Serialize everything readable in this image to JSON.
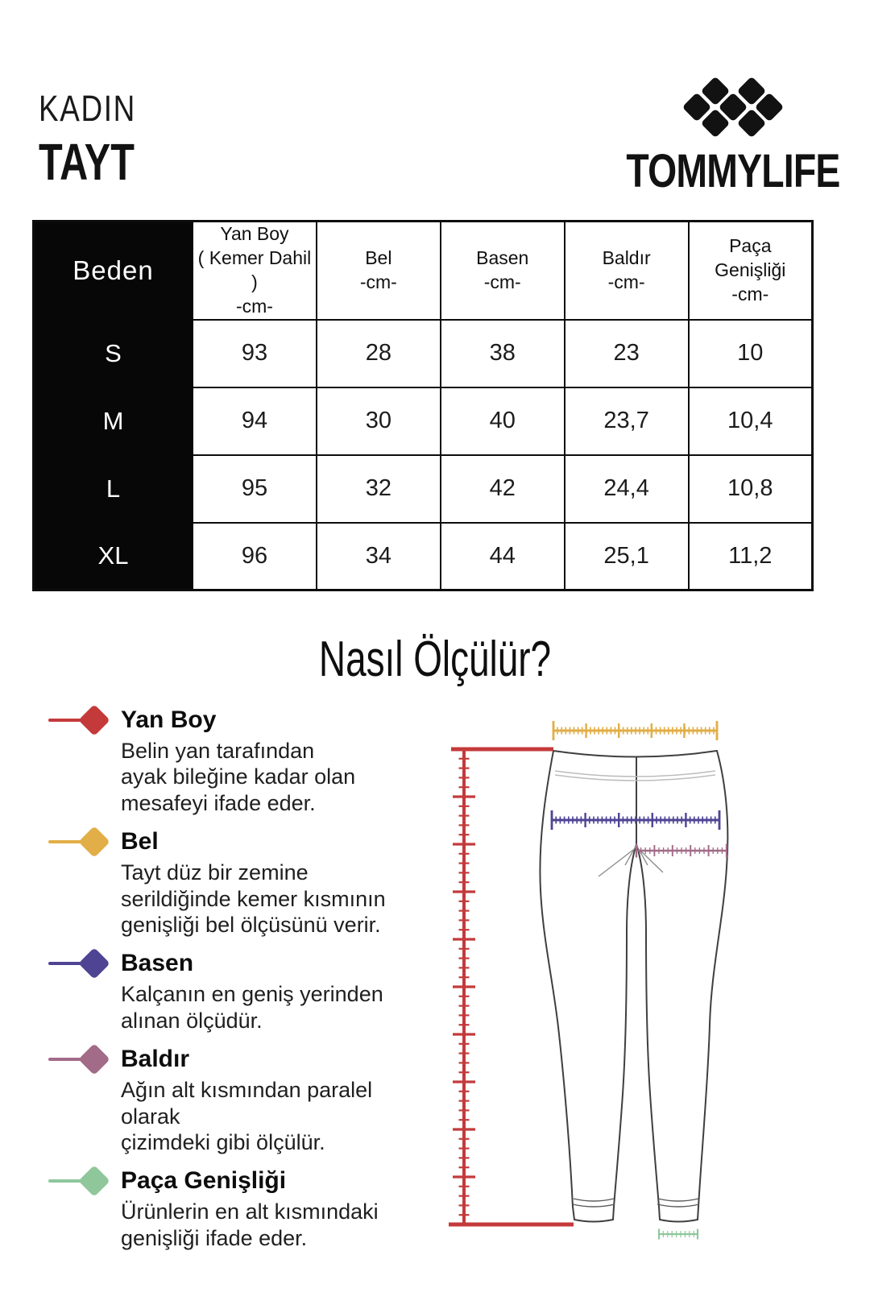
{
  "header": {
    "category": "KADIN",
    "product": "TAYT",
    "brand": "TOMMYLIFE"
  },
  "section_title": "Nasıl Ölçülür?",
  "size_table": {
    "header": {
      "size": "Beden",
      "yan_boy": "Yan Boy\n( Kemer Dahil )\n-cm-",
      "bel": "Bel\n-cm-",
      "basen": "Basen\n-cm-",
      "baldir": "Baldır\n-cm-",
      "paca": "Paça\nGenişliği\n-cm-"
    },
    "rows": [
      {
        "size": "S",
        "yan_boy": "93",
        "bel": "28",
        "basen": "38",
        "baldir": "23",
        "paca": "10"
      },
      {
        "size": "M",
        "yan_boy": "94",
        "bel": "30",
        "basen": "40",
        "baldir": "23,7",
        "paca": "10,4"
      },
      {
        "size": "L",
        "yan_boy": "95",
        "bel": "32",
        "basen": "42",
        "baldir": "24,4",
        "paca": "10,8"
      },
      {
        "size": "XL",
        "yan_boy": "96",
        "bel": "34",
        "basen": "44",
        "baldir": "25,1",
        "paca": "11,2"
      }
    ]
  },
  "legend": {
    "items": [
      {
        "label": "Yan Boy",
        "desc": "Belin yan tarafından\nayak bileğine kadar olan\nmesafeyi ifade eder."
      },
      {
        "label": "Bel",
        "desc": "Tayt düz bir zemine\nserildiğinde kemer kısmının\ngenişliği bel ölçüsünü verir."
      },
      {
        "label": "Basen",
        "desc": "Kalçanın en geniş yerinden\nalınan ölçüdür."
      },
      {
        "label": "Baldır",
        "desc": "Ağın alt kısmından paralel olarak\nçizimdeki gibi ölçülür."
      },
      {
        "label": "Paça Genişliği",
        "desc": "Ürünlerin en alt kısmındaki\ngenişliği ifade eder."
      }
    ]
  },
  "colors": {
    "yan_boy": "#C43A3B",
    "bel": "#E2AE47",
    "basen": "#4F4494",
    "baldir": "#A26B88",
    "paca_genisligi": "#8FC79B",
    "brand_black": "#121212",
    "outline": "#3F3F3F",
    "seam_gray": "#BDBDBD",
    "stitch_gray": "#8A8A8A"
  }
}
